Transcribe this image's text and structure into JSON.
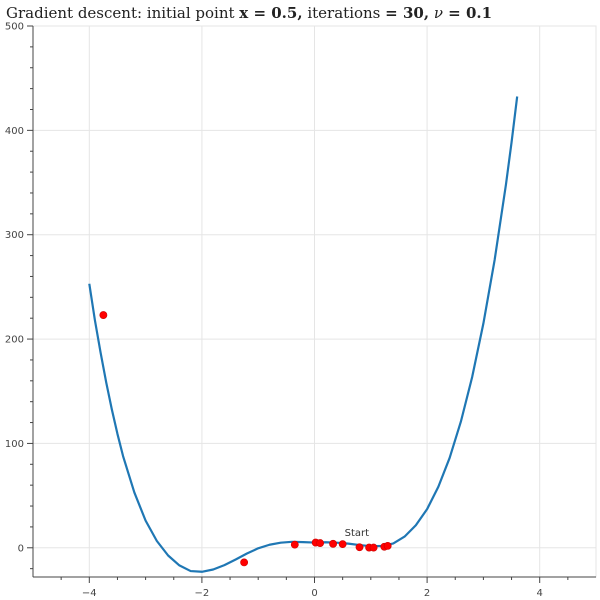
{
  "chart_data": {
    "type": "line",
    "title_parts": {
      "prefix": "Gradient descent: initial point ",
      "x_sym": "x",
      "x_val": " = 0.5,",
      "iter_text": " iterations ",
      "iter_val": "= 30,",
      "nu_sym": " ν",
      "nu_val": " = 0.1"
    },
    "xlim": [
      -5,
      5
    ],
    "ylim": [
      -28,
      500
    ],
    "x_ticks": [
      -4,
      -2,
      0,
      2,
      4
    ],
    "y_ticks": [
      0,
      100,
      200,
      300,
      400,
      500
    ],
    "grid": true,
    "curve_color": "#1f77b4",
    "point_color": "#ff0000",
    "series": [
      {
        "function": "f(x) = x^4 + x^3 - 6x^2 + 4x + 5",
        "points": [
          [
            -4.0,
            253.0
          ],
          [
            -3.9,
            217.9
          ],
          [
            -3.8,
            187.2
          ],
          [
            -3.7,
            158.6
          ],
          [
            -3.6,
            132.6
          ],
          [
            -3.5,
            109.1
          ],
          [
            -3.4,
            87.8
          ],
          [
            -3.2,
            53.0
          ],
          [
            -3.0,
            26.0
          ],
          [
            -2.8,
            6.5
          ],
          [
            -2.6,
            -7.4
          ],
          [
            -2.4,
            -16.9
          ],
          [
            -2.2,
            -22.3
          ],
          [
            -2.0,
            -23.0
          ],
          [
            -1.8,
            -20.8
          ],
          [
            -1.6,
            -16.6
          ],
          [
            -1.4,
            -11.2
          ],
          [
            -1.2,
            -5.5
          ],
          [
            -1.0,
            -0.5
          ],
          [
            -0.8,
            2.9
          ],
          [
            -0.6,
            4.9
          ],
          [
            -0.4,
            5.7
          ],
          [
            -0.2,
            5.4
          ],
          [
            0.0,
            5.0
          ],
          [
            0.2,
            5.3
          ],
          [
            0.4,
            4.9
          ],
          [
            0.6,
            4.0
          ],
          [
            0.8,
            2.6
          ],
          [
            1.0,
            1.5
          ],
          [
            1.2,
            1.7
          ],
          [
            1.4,
            4.2
          ],
          [
            1.6,
            10.7
          ],
          [
            1.8,
            21.6
          ],
          [
            2.0,
            37.0
          ],
          [
            2.2,
            58.5
          ],
          [
            2.4,
            86.1
          ],
          [
            2.6,
            120.9
          ],
          [
            2.8,
            163.5
          ],
          [
            3.0,
            215.0
          ],
          [
            3.2,
            276.0
          ],
          [
            3.4,
            347.9
          ],
          [
            3.5,
            388.5
          ],
          [
            3.6,
            432.4
          ]
        ]
      }
    ],
    "iterates": [
      [
        -3.75,
        223
      ],
      [
        -1.25,
        -14
      ],
      [
        -0.35,
        3
      ],
      [
        0.02,
        5
      ],
      [
        0.1,
        4.5
      ],
      [
        0.33,
        3.8
      ],
      [
        0.5,
        3.5
      ],
      [
        0.8,
        0.5
      ],
      [
        0.97,
        0.2
      ],
      [
        1.05,
        0.2
      ],
      [
        1.24,
        1.0
      ],
      [
        1.3,
        1.8
      ]
    ],
    "annotation": {
      "text": "Start",
      "x": 0.5,
      "y": 3.5
    }
  }
}
